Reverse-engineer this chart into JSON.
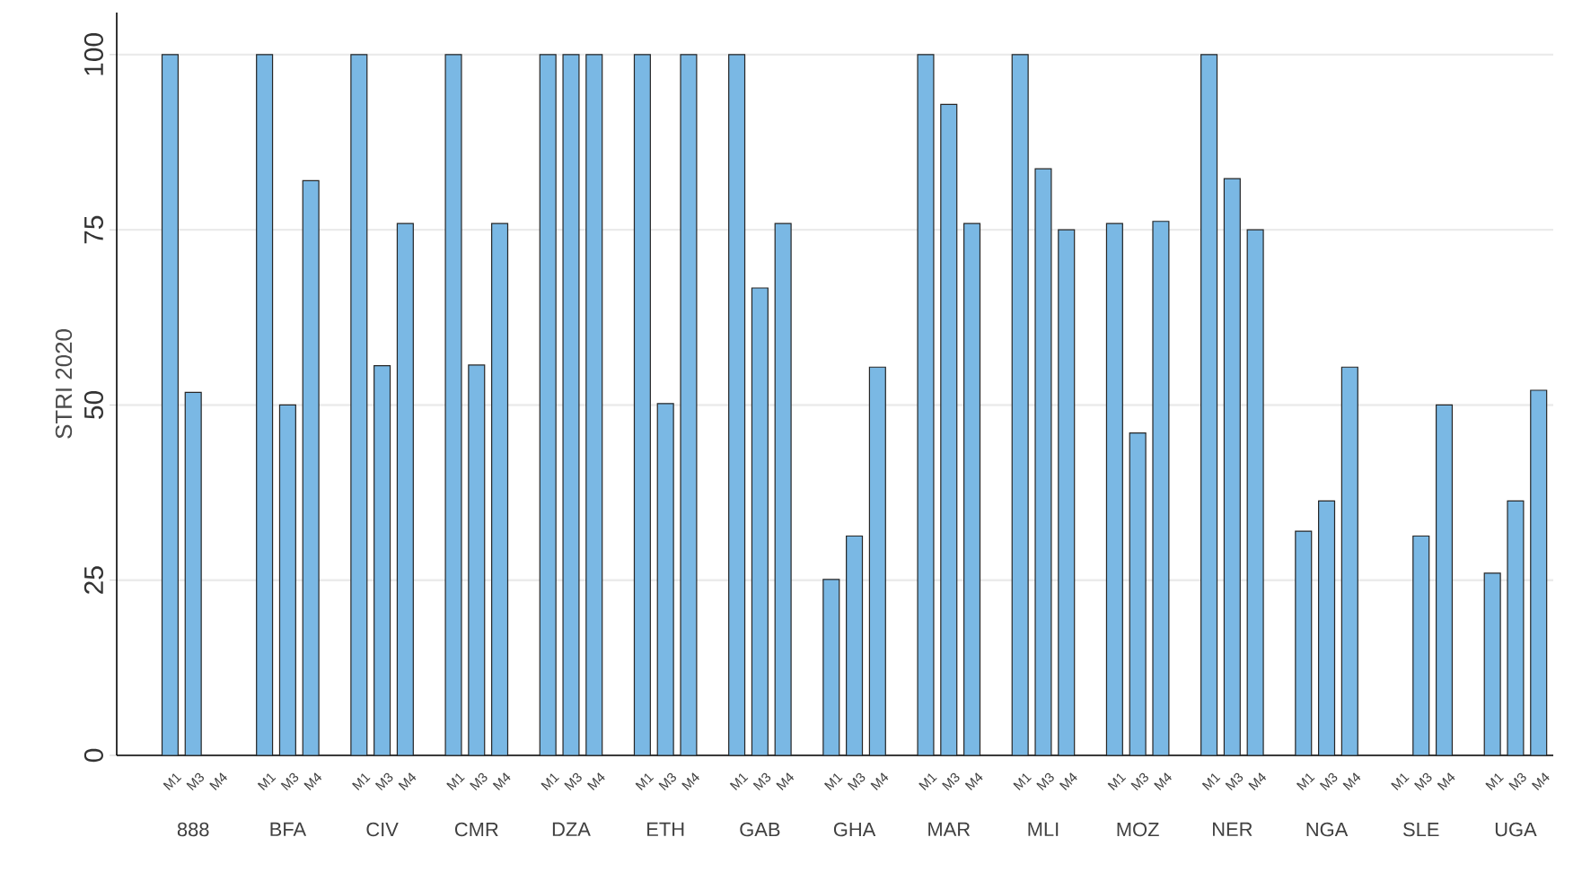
{
  "chart_data": {
    "type": "bar",
    "ylabel": "STRI 2020",
    "categories": [
      "888",
      "BFA",
      "CIV",
      "CMR",
      "DZA",
      "ETH",
      "GAB",
      "GHA",
      "MAR",
      "MLI",
      "MOZ",
      "NER",
      "NGA",
      "SLE",
      "UGA"
    ],
    "series": [
      {
        "name": "M1",
        "color": "#7ab8e4",
        "values": [
          100,
          100,
          100,
          100,
          100,
          100,
          100,
          25.1,
          100,
          100,
          75.9,
          100,
          32.0,
          null,
          26.0
        ]
      },
      {
        "name": "M3",
        "color": "#7ab8e4",
        "values": [
          51.8,
          50.0,
          55.6,
          55.7,
          100,
          50.2,
          66.7,
          31.3,
          92.9,
          83.7,
          46.0,
          82.3,
          36.3,
          31.3,
          36.3
        ]
      },
      {
        "name": "M4",
        "color": "#7ab8e4",
        "values": [
          null,
          82.0,
          75.9,
          75.9,
          100,
          100,
          75.9,
          55.4,
          75.9,
          75.0,
          76.2,
          75.0,
          55.4,
          50.0,
          52.1
        ]
      }
    ],
    "ylim": [
      0,
      106
    ],
    "yticks": [
      0,
      25,
      50,
      75,
      100
    ],
    "grid": "y"
  }
}
